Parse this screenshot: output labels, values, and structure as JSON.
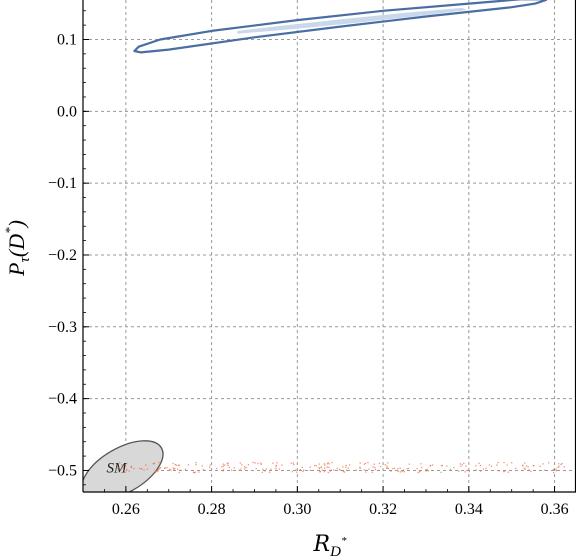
{
  "chart_data": {
    "type": "contour",
    "xlabel": {
      "main": "R",
      "sub": "D",
      "sup": "*"
    },
    "ylabel": {
      "main": "P",
      "sub": "τ",
      "paren": "(D",
      "sup": "*",
      "close": ")"
    },
    "xlim": [
      0.25,
      0.365
    ],
    "ylim": [
      -0.53,
      0.155
    ],
    "xticks": [
      0.26,
      0.28,
      0.3,
      0.32,
      0.34,
      0.36
    ],
    "xtick_labels": [
      "0.26",
      "0.28",
      "0.30",
      "0.32",
      "0.34",
      "0.36"
    ],
    "yticks": [
      0.1,
      0.0,
      -0.1,
      -0.2,
      -0.3,
      -0.4,
      -0.5
    ],
    "ytick_labels": [
      "0.1",
      "0.0",
      "−0.1",
      "−0.2",
      "−0.3",
      "−0.4",
      "−0.5"
    ],
    "grid": true,
    "regions": [
      {
        "kind": "outer_contour",
        "color": "#4a6ea3",
        "points": [
          [
            0.2635,
            0.082
          ],
          [
            0.27,
            0.086
          ],
          [
            0.29,
            0.103
          ],
          [
            0.31,
            0.118
          ],
          [
            0.33,
            0.132
          ],
          [
            0.35,
            0.145
          ],
          [
            0.3555,
            0.15
          ],
          [
            0.358,
            0.155
          ],
          [
            0.3575,
            0.156
          ],
          [
            0.352,
            0.156
          ],
          [
            0.34,
            0.15
          ],
          [
            0.32,
            0.14
          ],
          [
            0.3,
            0.127
          ],
          [
            0.28,
            0.112
          ],
          [
            0.268,
            0.1
          ],
          [
            0.263,
            0.09
          ],
          [
            0.262,
            0.084
          ]
        ]
      },
      {
        "kind": "inner_region",
        "color": "#c9d8ea",
        "points": [
          [
            0.286,
            0.108
          ],
          [
            0.3,
            0.115
          ],
          [
            0.315,
            0.124
          ],
          [
            0.33,
            0.134
          ],
          [
            0.3395,
            0.141
          ],
          [
            0.3385,
            0.144
          ],
          [
            0.325,
            0.137
          ],
          [
            0.31,
            0.128
          ],
          [
            0.296,
            0.119
          ],
          [
            0.286,
            0.112
          ]
        ]
      },
      {
        "kind": "sm_ellipse",
        "label": "SM",
        "color_fill": "#d8d8d8",
        "color_edge": "#555555",
        "center": [
          0.2592,
          -0.5
        ],
        "rx": 0.0105,
        "ry": 0.031,
        "angle_deg": -30
      },
      {
        "kind": "dotted_band",
        "color": "#e8734a",
        "x_range": [
          0.258,
          0.365
        ],
        "y_range": [
          -0.502,
          -0.488
        ]
      }
    ]
  }
}
